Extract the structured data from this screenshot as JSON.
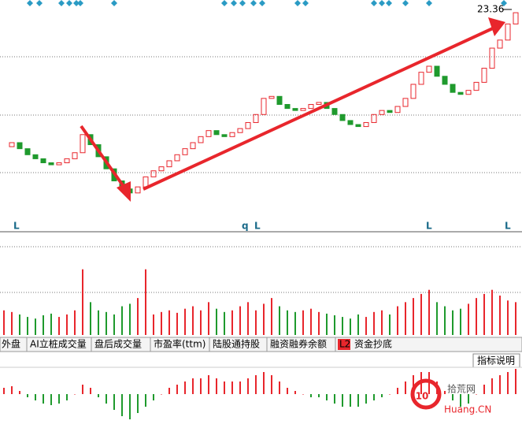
{
  "chart_data": [
    {
      "type": "candlestick",
      "ylim": [
        14,
        23.6
      ],
      "close": [
        16.7,
        16.9,
        16.6,
        16.3,
        16.1,
        15.9,
        15.8,
        15.9,
        16.1,
        16.4,
        17.3,
        16.8,
        16.2,
        15.6,
        15.0,
        14.6,
        14.4,
        14.7,
        15.2,
        15.5,
        15.7,
        16.0,
        16.3,
        16.6,
        16.9,
        17.2,
        17.5,
        17.3,
        17.2,
        17.4,
        17.6,
        17.9,
        18.3,
        19.1,
        19.2,
        18.8,
        18.6,
        18.5,
        18.6,
        18.8,
        18.9,
        18.6,
        18.3,
        18.0,
        17.8,
        17.7,
        17.9,
        18.3,
        18.5,
        18.4,
        18.7,
        19.1,
        19.8,
        20.4,
        20.7,
        20.2,
        19.8,
        19.4,
        19.3,
        19.5,
        19.9,
        20.6,
        21.6,
        22.0,
        22.8,
        23.36
      ],
      "up_color": "#e8262c",
      "down_color": "#1f9a2d"
    },
    {
      "type": "bar",
      "ylim": [
        0,
        120
      ],
      "values": [
        30,
        28,
        25,
        22,
        20,
        24,
        26,
        22,
        25,
        30,
        80,
        40,
        30,
        28,
        25,
        35,
        38,
        45,
        80,
        25,
        28,
        30,
        27,
        32,
        35,
        30,
        40,
        32,
        28,
        30,
        35,
        40,
        30,
        38,
        45,
        35,
        30,
        28,
        30,
        32,
        28,
        26,
        24,
        22,
        20,
        25,
        22,
        28,
        30,
        25,
        35,
        40,
        45,
        50,
        55,
        40,
        35,
        30,
        32,
        38,
        45,
        50,
        55,
        48,
        42,
        40
      ]
    },
    {
      "type": "bar",
      "ylim": [
        -1,
        1
      ],
      "values": [
        0.2,
        0.25,
        0.1,
        -0.1,
        -0.2,
        -0.3,
        -0.35,
        -0.3,
        -0.2,
        0,
        0.3,
        0.2,
        -0.1,
        -0.3,
        -0.5,
        -0.7,
        -0.8,
        -0.6,
        -0.4,
        -0.2,
        0,
        0.2,
        0.3,
        0.4,
        0.5,
        0.5,
        0.6,
        0.5,
        0.4,
        0.4,
        0.4,
        0.5,
        0.6,
        0.7,
        0.6,
        0.4,
        0.2,
        0.1,
        0,
        -0.1,
        -0.1,
        -0.2,
        -0.3,
        -0.4,
        -0.4,
        -0.4,
        -0.3,
        -0.2,
        -0.1,
        0,
        0.2,
        0.4,
        0.6,
        0.7,
        0.7,
        0.4,
        0.1,
        -0.2,
        -0.4,
        -0.3,
        0,
        0.3,
        0.5,
        0.6,
        0.7,
        0.8
      ]
    }
  ],
  "markers": [
    "L",
    "q",
    "L",
    "L",
    "L"
  ],
  "tabs": [
    "外盘",
    "AI立桩成交量",
    "盘后成交量",
    "市盈率(ttm)",
    "陆股通持股",
    "融资融券余额",
    "L2",
    "资金抄底"
  ],
  "button": "指标说明",
  "watermark": {
    "number": "10",
    "name": "拾荒网",
    "site": "Huang.CN"
  }
}
